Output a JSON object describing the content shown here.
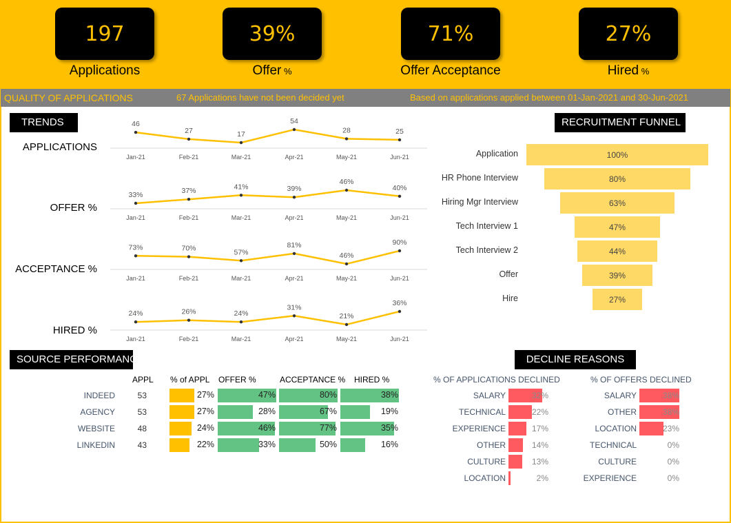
{
  "kpis": [
    {
      "value": "197",
      "label": "Applications",
      "suffix": ""
    },
    {
      "value": "39%",
      "label": "Offer",
      "suffix": " %"
    },
    {
      "value": "71%",
      "label": "Offer Acceptance",
      "suffix": ""
    },
    {
      "value": "27%",
      "label": "Hired",
      "suffix": " %"
    }
  ],
  "banner": {
    "title": "QUALITY OF APPLICATIONS",
    "note": "67 Applications have not been decided yet",
    "range": "Based on applications applied between 01-Jan-2021 and 30-Jun-2021"
  },
  "sections": {
    "trends": "TRENDS",
    "funnel": "RECRUITMENT FUNNEL",
    "source": "SOURCE PERFORMANCE",
    "decline": "DECLINE REASONS"
  },
  "colors": {
    "brand": "#FFC000",
    "funnel": "#FFD966",
    "green": "#63C384",
    "red": "#FF5A5F"
  },
  "chart_data": [
    {
      "type": "line",
      "title": "APPLICATIONS",
      "x": [
        "Jan-21",
        "Feb-21",
        "Mar-21",
        "Apr-21",
        "May-21",
        "Jun-21"
      ],
      "values": [
        46,
        27,
        17,
        54,
        28,
        25
      ],
      "labels": [
        "46",
        "27",
        "17",
        "54",
        "28",
        "25"
      ]
    },
    {
      "type": "line",
      "title": "OFFER %",
      "x": [
        "Jan-21",
        "Feb-21",
        "Mar-21",
        "Apr-21",
        "May-21",
        "Jun-21"
      ],
      "values": [
        33,
        37,
        41,
        39,
        46,
        40
      ],
      "labels": [
        "33%",
        "37%",
        "41%",
        "39%",
        "46%",
        "40%"
      ]
    },
    {
      "type": "line",
      "title": "ACCEPTANCE %",
      "x": [
        "Jan-21",
        "Feb-21",
        "Mar-21",
        "Apr-21",
        "May-21",
        "Jun-21"
      ],
      "values": [
        73,
        70,
        57,
        81,
        46,
        90
      ],
      "labels": [
        "73%",
        "70%",
        "57%",
        "81%",
        "46%",
        "90%"
      ]
    },
    {
      "type": "line",
      "title": "HIRED %",
      "x": [
        "Jan-21",
        "Feb-21",
        "Mar-21",
        "Apr-21",
        "May-21",
        "Jun-21"
      ],
      "values": [
        24,
        26,
        24,
        31,
        21,
        36
      ],
      "labels": [
        "24%",
        "26%",
        "24%",
        "31%",
        "21%",
        "36%"
      ]
    },
    {
      "type": "bar",
      "title": "RECRUITMENT FUNNEL",
      "categories": [
        "Application",
        "HR Phone Interview",
        "Hiring Mgr Interview",
        "Tech Interview 1",
        "Tech Interview 2",
        "Offer",
        "Hire"
      ],
      "values": [
        100,
        80,
        63,
        47,
        44,
        39,
        27
      ],
      "labels": [
        "100%",
        "80%",
        "63%",
        "47%",
        "44%",
        "39%",
        "27%"
      ]
    },
    {
      "type": "table",
      "title": "SOURCE PERFORMANCE",
      "columns": [
        "APPL",
        "% of APPL",
        "OFFER %",
        "ACCEPTANCE %",
        "HIRED %"
      ],
      "rows": [
        {
          "name": "INDEED",
          "appl": "53",
          "pct_appl": 27,
          "offer": 47,
          "accept": 80,
          "hired": 38
        },
        {
          "name": "AGENCY",
          "appl": "53",
          "pct_appl": 27,
          "offer": 28,
          "accept": 67,
          "hired": 19
        },
        {
          "name": "WEBSITE",
          "appl": "48",
          "pct_appl": 24,
          "offer": 46,
          "accept": 77,
          "hired": 35
        },
        {
          "name": "LINKEDIN",
          "appl": "43",
          "pct_appl": 22,
          "offer": 33,
          "accept": 50,
          "hired": 16
        }
      ]
    },
    {
      "type": "bar",
      "title": "% OF APPLICATIONS DECLINED",
      "categories": [
        "SALARY",
        "TECHNICAL",
        "EXPERIENCE",
        "OTHER",
        "CULTURE",
        "LOCATION"
      ],
      "values": [
        32,
        22,
        17,
        14,
        13,
        2
      ]
    },
    {
      "type": "bar",
      "title": "% OF OFFERS DECLINED",
      "categories": [
        "SALARY",
        "OTHER",
        "LOCATION",
        "TECHNICAL",
        "CULTURE",
        "EXPERIENCE"
      ],
      "values": [
        38,
        38,
        23,
        0,
        0,
        0
      ]
    }
  ]
}
